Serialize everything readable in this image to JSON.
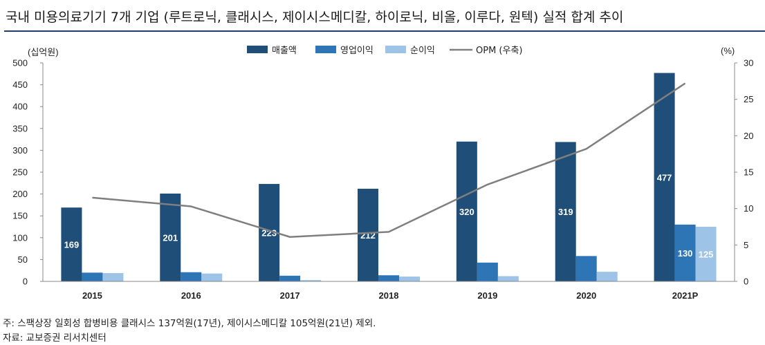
{
  "title": "국내 미용의료기기 7개 기업 (루트로닉, 클래시스, 제이시스메디칼, 하이로닉, 비올, 이루다, 원텍) 실적 합계 추이",
  "footnote": "주: 스팩상장 일회성 합병비용 클래시스 137억원(17년), 제이시스메디칼 105억원(21년) 제외.",
  "source": "자료: 교보증권 리서치센터",
  "chart_data": {
    "type": "bar",
    "categories": [
      "2015",
      "2016",
      "2017",
      "2018",
      "2019",
      "2020",
      "2021P"
    ],
    "series": [
      {
        "name": "매출액",
        "type": "bar",
        "axis": "left",
        "color": "#1f4e79",
        "values": [
          169,
          201,
          223,
          212,
          320,
          319,
          477
        ],
        "labels": [
          "169",
          "201",
          "223",
          "212",
          "320",
          "319",
          "477"
        ]
      },
      {
        "name": "영업이익",
        "type": "bar",
        "axis": "left",
        "color": "#2e75b6",
        "values": [
          20,
          21,
          13,
          14,
          43,
          58,
          130
        ],
        "labels": [
          "",
          "",
          "",
          "",
          "",
          "",
          "130"
        ]
      },
      {
        "name": "순이익",
        "type": "bar",
        "axis": "left",
        "color": "#9dc3e6",
        "values": [
          19,
          18,
          3,
          11,
          12,
          22,
          125
        ],
        "labels": [
          "",
          "",
          "",
          "",
          "",
          "",
          "125"
        ]
      },
      {
        "name": "OPM (우축)",
        "type": "line",
        "axis": "right",
        "color": "#7f7f7f",
        "values": [
          11.5,
          10.3,
          6.1,
          6.8,
          13.3,
          18.2,
          27.2
        ]
      }
    ],
    "ylabel_left": "(십억원)",
    "ylabel_right": "(%)",
    "ylim_left": [
      0,
      500
    ],
    "ylim_right": [
      0,
      30
    ],
    "yticks_left": [
      "0",
      "50",
      "100",
      "150",
      "200",
      "250",
      "300",
      "350",
      "400",
      "450",
      "500"
    ],
    "yticks_right": [
      "0",
      "5",
      "10",
      "15",
      "20",
      "25",
      "30"
    ],
    "legend_position": "top-center",
    "grid": false
  }
}
